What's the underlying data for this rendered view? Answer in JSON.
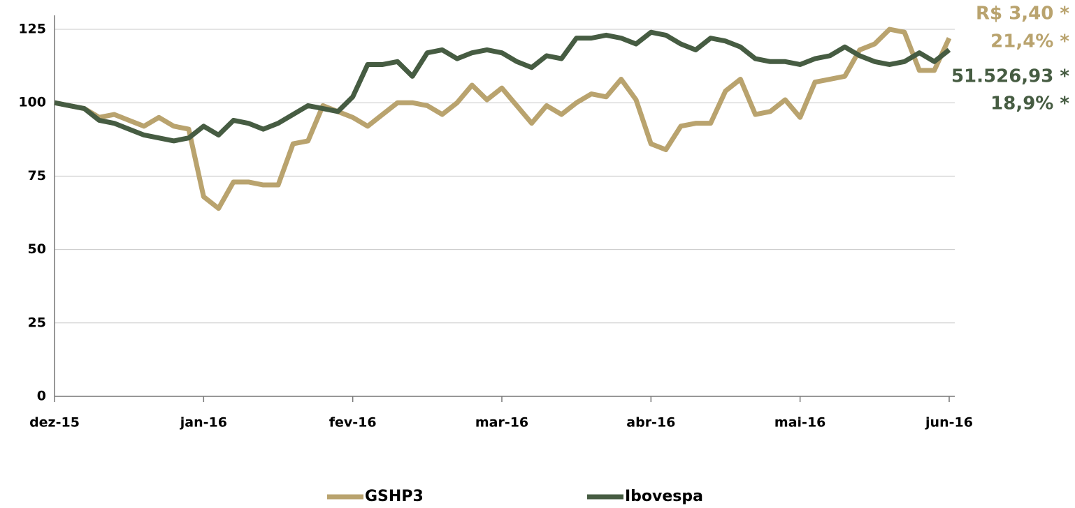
{
  "chart_data": {
    "type": "line",
    "categories": [
      "dez-15",
      null,
      null,
      null,
      null,
      null,
      null,
      null,
      null,
      null,
      "jan-16",
      null,
      null,
      null,
      null,
      null,
      null,
      null,
      null,
      null,
      "fev-16",
      null,
      null,
      null,
      null,
      null,
      null,
      null,
      null,
      null,
      "mar-16",
      null,
      null,
      null,
      null,
      null,
      null,
      null,
      null,
      null,
      "abr-16",
      null,
      null,
      null,
      null,
      null,
      null,
      null,
      null,
      null,
      "mai-16",
      null,
      null,
      null,
      null,
      null,
      null,
      null,
      null,
      null,
      "jun-16"
    ],
    "series": [
      {
        "name": "GSHP3",
        "color": "#b9a36e",
        "values": [
          100,
          99,
          98,
          95,
          96,
          94,
          92,
          95,
          92,
          91,
          68,
          64,
          73,
          73,
          72,
          72,
          86,
          87,
          99,
          97,
          95,
          92,
          96,
          100,
          100,
          99,
          96,
          100,
          106,
          101,
          105,
          99,
          93,
          99,
          96,
          100,
          103,
          102,
          108,
          101,
          86,
          84,
          92,
          93,
          93,
          104,
          108,
          96,
          97,
          101,
          95,
          107,
          108,
          109,
          118,
          120,
          125,
          124,
          111,
          111,
          122
        ]
      },
      {
        "name": "Ibovespa",
        "color": "#465c42",
        "values": [
          100,
          99,
          98,
          94,
          93,
          91,
          89,
          88,
          87,
          88,
          92,
          89,
          94,
          93,
          91,
          93,
          96,
          99,
          98,
          97,
          102,
          113,
          113,
          114,
          109,
          117,
          118,
          115,
          117,
          118,
          117,
          114,
          112,
          116,
          115,
          122,
          122,
          123,
          122,
          120,
          124,
          123,
          120,
          118,
          122,
          121,
          119,
          115,
          114,
          114,
          113,
          115,
          116,
          119,
          116,
          114,
          113,
          114,
          117,
          114,
          118
        ]
      }
    ],
    "annotations": [
      {
        "text": "R$ 3,40 *",
        "color": "#b9a36e"
      },
      {
        "text": "21,4% *",
        "color": "#b9a36e"
      },
      {
        "text": "51.526,93 *",
        "color": "#465c42"
      },
      {
        "text": "18,9% *",
        "color": "#465c42"
      }
    ],
    "ylim": [
      0,
      125
    ],
    "yticks": [
      0,
      25,
      50,
      75,
      100,
      125
    ],
    "grid": true
  }
}
